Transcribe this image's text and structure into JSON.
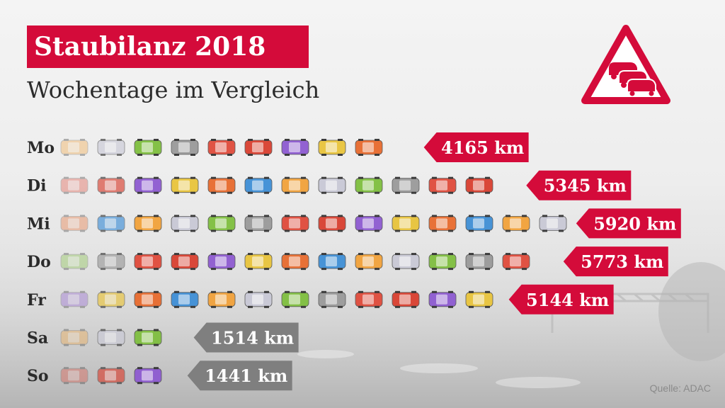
{
  "header": {
    "title": "Staubilanz 2018",
    "subtitle": "Wochentage im Vergleich"
  },
  "footer": {
    "source": "Quelle: ADAC"
  },
  "icons": {
    "warning": "traffic-jam-warning-icon",
    "car": "car-icon"
  },
  "colors": {
    "accent": "#d40b3a",
    "weekend": "#7f7f7f",
    "text": "#2b2b2b"
  },
  "chart_data": {
    "type": "bar",
    "categories": [
      "Mo",
      "Di",
      "Mi",
      "Do",
      "Fr",
      "Sa",
      "So"
    ],
    "values": [
      4165,
      5345,
      5920,
      5773,
      5144,
      1514,
      1441
    ],
    "value_labels": [
      "4165 km",
      "5345 km",
      "5920 km",
      "5773 km",
      "5144 km",
      "1514 km",
      "1441 km"
    ],
    "unit": "km",
    "title": "Staubilanz 2018",
    "subtitle": "Wochentage im Vergleich",
    "grid": false,
    "legend": "none"
  }
}
